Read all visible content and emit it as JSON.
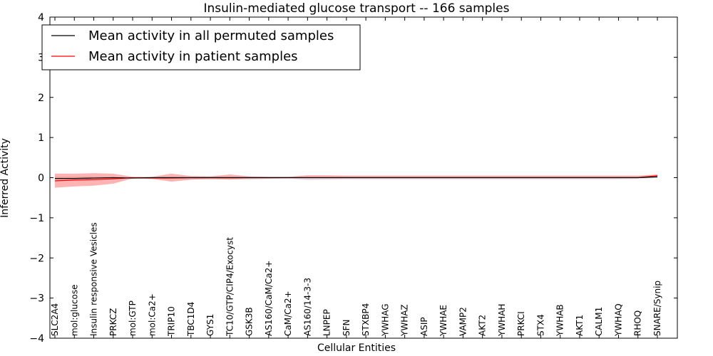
{
  "chart_data": {
    "type": "line",
    "title": "Insulin-mediated glucose transport -- 166 samples",
    "xlabel": "Cellular Entities",
    "ylabel": "Inferred Activity",
    "ylim": [
      -4,
      4
    ],
    "yticks": [
      -4,
      -3,
      -2,
      -1,
      0,
      1,
      2,
      3,
      4
    ],
    "ytick_labels": [
      "−4",
      "−3",
      "−2",
      "−1",
      "0",
      "1",
      "2",
      "3",
      "4"
    ],
    "grid": false,
    "legend_position": "top-left",
    "categories": [
      "SLC2A4",
      "mol:glucose",
      "Insulin responsive Vesicles",
      "PRKCZ",
      "mol:GTP",
      "mol:Ca2+",
      "TRIP10",
      "TBC1D4",
      "GYS1",
      "TC10/GTP/CIP4/Exocyst",
      "GSK3B",
      "AS160/CaM/Ca2+",
      "CaM/Ca2+",
      "AS160/14-3-3",
      "LNPEP",
      "SFN",
      "STXBP4",
      "YWHAG",
      "YWHAZ",
      "ASIP",
      "YWHAE",
      "VAMP2",
      "AKT2",
      "YWHAH",
      "PRKCI",
      "STX4",
      "YWHAB",
      "AKT1",
      "CALM1",
      "YWHAQ",
      "RHOQ",
      "SNARE/Synip"
    ],
    "series": [
      {
        "name": "Mean activity in all permuted samples",
        "color": "#000000",
        "values": [
          -0.02,
          -0.02,
          -0.01,
          0.0,
          -0.01,
          0.0,
          0.0,
          0.0,
          0.0,
          0.0,
          0.0,
          0.0,
          0.0,
          0.0,
          0.0,
          0.0,
          0.0,
          0.0,
          0.0,
          0.0,
          0.0,
          0.0,
          0.0,
          0.0,
          0.0,
          0.0,
          0.0,
          0.0,
          0.0,
          0.0,
          0.0,
          0.02
        ],
        "band_lower": [
          -0.05,
          -0.05,
          -0.04,
          -0.03,
          -0.02,
          -0.02,
          -0.03,
          -0.04,
          -0.05,
          -0.04,
          -0.05,
          -0.03,
          -0.02,
          -0.06,
          -0.05,
          -0.04,
          -0.04,
          -0.04,
          -0.04,
          -0.04,
          -0.04,
          -0.04,
          -0.04,
          -0.04,
          -0.04,
          -0.04,
          -0.04,
          -0.04,
          -0.04,
          -0.04,
          -0.03,
          -0.01
        ],
        "band_upper": [
          0.03,
          0.03,
          0.03,
          0.02,
          0.01,
          0.02,
          0.03,
          0.03,
          0.03,
          0.03,
          0.03,
          0.02,
          0.02,
          0.03,
          0.03,
          0.03,
          0.03,
          0.03,
          0.03,
          0.03,
          0.03,
          0.03,
          0.03,
          0.03,
          0.03,
          0.03,
          0.03,
          0.03,
          0.03,
          0.03,
          0.03,
          0.05
        ]
      },
      {
        "name": "Mean activity in patient samples",
        "color": "#ff0000",
        "fill_color": "#ff8080",
        "values": [
          -0.08,
          -0.06,
          -0.05,
          -0.03,
          0.0,
          -0.01,
          -0.01,
          0.0,
          0.0,
          0.0,
          0.0,
          0.0,
          0.0,
          0.0,
          0.0,
          0.0,
          0.0,
          0.0,
          0.0,
          0.0,
          0.0,
          0.0,
          0.0,
          0.0,
          0.0,
          0.0,
          0.0,
          0.0,
          0.0,
          0.0,
          0.0,
          0.05
        ],
        "band_lower": [
          -0.25,
          -0.22,
          -0.2,
          -0.15,
          -0.02,
          -0.03,
          -0.1,
          -0.05,
          -0.03,
          -0.05,
          -0.02,
          -0.02,
          -0.01,
          -0.01,
          -0.01,
          -0.01,
          -0.01,
          -0.01,
          -0.01,
          -0.01,
          -0.01,
          -0.01,
          -0.01,
          -0.01,
          -0.01,
          -0.01,
          -0.01,
          -0.01,
          -0.01,
          -0.01,
          -0.01,
          0.02
        ],
        "band_upper": [
          0.1,
          0.1,
          0.11,
          0.1,
          0.02,
          0.02,
          0.1,
          0.04,
          0.03,
          0.08,
          0.03,
          0.02,
          0.02,
          0.06,
          0.06,
          0.05,
          0.05,
          0.05,
          0.05,
          0.05,
          0.05,
          0.05,
          0.05,
          0.05,
          0.05,
          0.05,
          0.05,
          0.05,
          0.05,
          0.05,
          0.05,
          0.08
        ]
      }
    ]
  }
}
